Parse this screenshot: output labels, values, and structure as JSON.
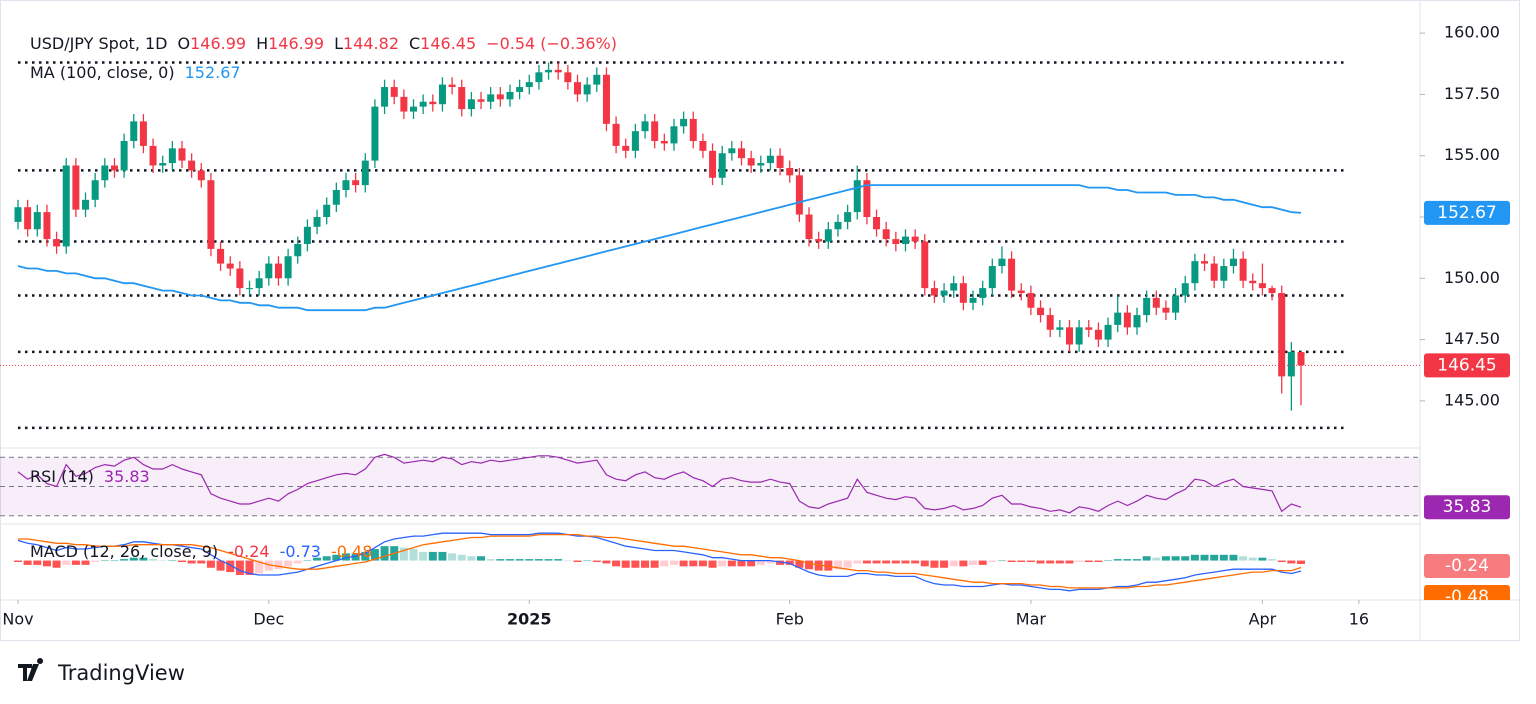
{
  "chart_data": {
    "type": "candlestick",
    "header": [
      [
        {
          "k": "USD/JPY Spot, 1D"
        },
        {
          "k": "O",
          "v": "146.99",
          "color": "#f23645"
        },
        {
          "k": "H",
          "v": "146.99",
          "color": "#f23645"
        },
        {
          "k": "L",
          "v": "144.82",
          "color": "#f23645"
        },
        {
          "k": "C",
          "v": "146.45",
          "color": "#f23645"
        },
        {
          "v": "−0.54 (−0.36%)",
          "color": "#f23645"
        }
      ],
      [
        {
          "k": "MA (100, close, 0)",
          "v": "152.67",
          "color": "#2196f3"
        }
      ]
    ],
    "rsi_header": [
      {
        "k": "RSI (14)",
        "v": "35.83",
        "color": "#9c27b0"
      }
    ],
    "macd_header": [
      {
        "k": "MACD (12, 26, close, 9)",
        "v": "-0.24",
        "color": "#f23645"
      },
      {
        "v": "-0.73",
        "color": "#2962ff"
      },
      {
        "v": "-0.48",
        "color": "#ff6d00"
      }
    ],
    "brand": "TradingView",
    "up_color": "#089981",
    "down_color": "#f23645",
    "ma_color": "#2196f3",
    "open": [
      152.3,
      152.9,
      152.0,
      152.7,
      151.6,
      151.3,
      154.6,
      152.8,
      153.2,
      154.0,
      154.6,
      154.4,
      155.6,
      156.4,
      155.4,
      154.6,
      154.7,
      155.3,
      154.8,
      154.4,
      154.0,
      151.2,
      150.6,
      150.4,
      149.6,
      149.6,
      150.0,
      150.6,
      150.0,
      150.9,
      151.4,
      152.1,
      152.5,
      153.0,
      153.6,
      154.0,
      153.8,
      154.8,
      157.0,
      157.8,
      157.4,
      156.8,
      157.0,
      157.2,
      157.1,
      157.9,
      157.8,
      156.9,
      157.3,
      157.2,
      157.5,
      157.3,
      157.6,
      157.8,
      158.0,
      158.4,
      158.5,
      158.4,
      158.0,
      157.5,
      157.9,
      158.3,
      156.3,
      155.4,
      155.2,
      156.0,
      156.4,
      155.6,
      155.5,
      156.2,
      156.5,
      155.6,
      155.2,
      154.1,
      155.1,
      155.3,
      154.9,
      154.6,
      154.7,
      155.0,
      154.5,
      154.2,
      152.6,
      151.6,
      151.5,
      152.0,
      152.3,
      152.7,
      154.0,
      152.5,
      152.0,
      151.6,
      151.4,
      151.7,
      151.5,
      149.6,
      149.3,
      149.5,
      149.8,
      149.0,
      149.2,
      149.6,
      150.5,
      150.8,
      149.5,
      149.4,
      148.8,
      148.5,
      147.9,
      148.0,
      147.3,
      148.0,
      147.9,
      147.5,
      148.1,
      148.6,
      148.0,
      148.5,
      149.2,
      148.8,
      148.6,
      149.3,
      149.8,
      150.7,
      150.6,
      149.9,
      150.5,
      150.8,
      149.9,
      149.8,
      149.6,
      149.4,
      146.0,
      146.99
    ],
    "high": [
      153.2,
      153.2,
      153.0,
      153.0,
      151.9,
      154.9,
      154.9,
      153.5,
      154.3,
      154.9,
      154.9,
      155.9,
      156.7,
      156.7,
      155.7,
      155.0,
      155.6,
      155.6,
      155.1,
      154.7,
      154.3,
      151.5,
      150.9,
      150.7,
      149.9,
      150.3,
      150.9,
      150.9,
      151.2,
      151.7,
      152.4,
      152.8,
      153.3,
      153.9,
      154.3,
      154.3,
      155.1,
      157.3,
      158.1,
      158.1,
      157.7,
      157.3,
      157.5,
      157.5,
      158.2,
      158.2,
      158.1,
      157.6,
      157.6,
      157.8,
      157.8,
      157.9,
      158.1,
      158.3,
      158.7,
      158.8,
      158.8,
      158.7,
      158.3,
      158.2,
      158.6,
      158.6,
      156.6,
      155.7,
      156.3,
      156.7,
      156.7,
      155.9,
      156.5,
      156.8,
      156.8,
      155.9,
      155.5,
      155.4,
      155.6,
      155.6,
      155.2,
      155.0,
      155.3,
      155.3,
      154.8,
      154.5,
      152.9,
      151.9,
      152.3,
      152.6,
      153.0,
      154.6,
      154.3,
      152.8,
      152.3,
      151.9,
      152.0,
      152.0,
      151.8,
      149.9,
      149.8,
      150.1,
      150.1,
      149.5,
      149.9,
      150.8,
      151.3,
      151.1,
      149.8,
      149.7,
      149.1,
      148.8,
      148.3,
      148.3,
      148.3,
      148.3,
      148.2,
      148.4,
      149.3,
      148.9,
      148.8,
      149.5,
      149.5,
      149.1,
      149.6,
      150.1,
      151.0,
      151.0,
      150.9,
      150.8,
      151.2,
      151.1,
      150.2,
      150.6,
      149.7,
      149.7,
      147.4,
      146.99
    ],
    "low": [
      152.0,
      151.7,
      151.7,
      151.3,
      151.0,
      151.0,
      152.5,
      152.5,
      152.9,
      153.7,
      154.1,
      154.1,
      155.3,
      155.1,
      154.3,
      154.3,
      154.4,
      154.5,
      154.1,
      153.7,
      150.9,
      150.3,
      150.1,
      149.3,
      149.3,
      149.3,
      149.7,
      149.7,
      149.7,
      150.6,
      151.1,
      151.8,
      152.2,
      152.7,
      153.3,
      153.5,
      153.5,
      154.5,
      156.7,
      157.1,
      156.5,
      156.5,
      156.7,
      156.8,
      156.8,
      157.5,
      156.6,
      156.6,
      156.9,
      156.9,
      157.0,
      157.0,
      157.3,
      157.5,
      157.7,
      158.1,
      158.1,
      157.7,
      157.2,
      157.2,
      157.6,
      156.0,
      155.1,
      154.9,
      154.9,
      155.7,
      155.3,
      155.2,
      155.2,
      155.9,
      155.3,
      154.9,
      153.8,
      153.8,
      154.8,
      154.6,
      154.3,
      154.3,
      154.4,
      154.2,
      153.9,
      152.3,
      151.3,
      151.2,
      151.2,
      151.7,
      152.0,
      152.4,
      152.2,
      151.7,
      151.3,
      151.1,
      151.1,
      151.2,
      149.3,
      149.0,
      149.0,
      149.2,
      148.7,
      148.7,
      148.9,
      149.3,
      150.2,
      149.2,
      149.1,
      148.5,
      148.2,
      147.6,
      147.6,
      147.0,
      147.0,
      147.6,
      147.2,
      147.2,
      147.8,
      147.7,
      147.7,
      148.2,
      148.5,
      148.3,
      148.3,
      149.0,
      149.5,
      150.3,
      149.6,
      149.6,
      150.2,
      149.6,
      149.5,
      149.3,
      149.1,
      145.3,
      144.6,
      144.82
    ],
    "close": [
      152.9,
      152.0,
      152.7,
      151.6,
      151.3,
      154.6,
      152.8,
      153.2,
      154.0,
      154.6,
      154.4,
      155.6,
      156.4,
      155.4,
      154.6,
      154.7,
      155.3,
      154.8,
      154.4,
      154.0,
      151.2,
      150.6,
      150.4,
      149.6,
      149.6,
      150.0,
      150.6,
      150.0,
      150.9,
      151.4,
      152.1,
      152.5,
      153.0,
      153.6,
      154.0,
      153.8,
      154.8,
      157.0,
      157.8,
      157.4,
      156.8,
      157.0,
      157.2,
      157.1,
      157.9,
      157.8,
      156.9,
      157.3,
      157.2,
      157.5,
      157.3,
      157.6,
      157.8,
      158.0,
      158.4,
      158.5,
      158.4,
      158.0,
      157.5,
      157.9,
      158.3,
      156.3,
      155.4,
      155.2,
      156.0,
      156.4,
      155.6,
      155.5,
      156.2,
      156.5,
      155.6,
      155.2,
      154.1,
      155.1,
      155.3,
      154.9,
      154.6,
      154.7,
      155.0,
      154.5,
      154.2,
      152.6,
      151.6,
      151.5,
      152.0,
      152.3,
      152.7,
      154.0,
      152.5,
      152.0,
      151.6,
      151.4,
      151.7,
      151.5,
      149.6,
      149.3,
      149.5,
      149.8,
      149.0,
      149.2,
      149.6,
      150.5,
      150.8,
      149.5,
      149.4,
      148.8,
      148.5,
      147.9,
      148.0,
      147.3,
      148.0,
      147.9,
      147.5,
      148.1,
      148.6,
      148.0,
      148.5,
      149.2,
      148.8,
      148.6,
      149.3,
      149.8,
      150.7,
      150.6,
      149.9,
      150.5,
      150.8,
      149.9,
      149.8,
      149.6,
      149.4,
      146.0,
      147.0,
      146.45
    ],
    "ma": [
      150.5,
      150.4,
      150.4,
      150.3,
      150.3,
      150.2,
      150.2,
      150.1,
      150.0,
      150.0,
      149.9,
      149.8,
      149.8,
      149.7,
      149.6,
      149.5,
      149.5,
      149.4,
      149.3,
      149.3,
      149.2,
      149.1,
      149.1,
      149.0,
      149.0,
      148.9,
      148.9,
      148.8,
      148.8,
      148.8,
      148.7,
      148.7,
      148.7,
      148.7,
      148.7,
      148.7,
      148.7,
      148.8,
      148.8,
      148.9,
      149.0,
      149.1,
      149.2,
      149.3,
      149.4,
      149.5,
      149.6,
      149.7,
      149.8,
      149.9,
      150.0,
      150.1,
      150.2,
      150.3,
      150.4,
      150.5,
      150.6,
      150.7,
      150.8,
      150.9,
      151.0,
      151.1,
      151.2,
      151.3,
      151.4,
      151.5,
      151.6,
      151.7,
      151.8,
      151.9,
      152.0,
      152.1,
      152.2,
      152.3,
      152.4,
      152.5,
      152.6,
      152.7,
      152.8,
      152.9,
      153.0,
      153.1,
      153.2,
      153.3,
      153.4,
      153.5,
      153.6,
      153.7,
      153.8,
      153.8,
      153.8,
      153.8,
      153.8,
      153.8,
      153.8,
      153.8,
      153.8,
      153.8,
      153.8,
      153.8,
      153.8,
      153.8,
      153.8,
      153.8,
      153.8,
      153.8,
      153.8,
      153.8,
      153.8,
      153.8,
      153.8,
      153.7,
      153.7,
      153.7,
      153.6,
      153.6,
      153.5,
      153.5,
      153.5,
      153.5,
      153.4,
      153.4,
      153.4,
      153.3,
      153.3,
      153.2,
      153.2,
      153.1,
      153.0,
      152.9,
      152.9,
      152.8,
      152.7,
      152.67
    ],
    "levels": [
      158.8,
      154.4,
      151.5,
      149.3,
      147.0,
      143.9
    ],
    "ylim": [
      143.12,
      161.35
    ],
    "yticks": [
      {
        "value": 145,
        "label": "145.00"
      },
      {
        "value": 147.5,
        "label": "147.50"
      },
      {
        "value": 150,
        "label": "150.00"
      },
      {
        "value": 152.5,
        "label": "152.50"
      },
      {
        "value": 155,
        "label": "155.00"
      },
      {
        "value": 157.5,
        "label": "157.50"
      },
      {
        "value": 160,
        "label": "160.00"
      }
    ],
    "xlim": [
      0,
      133
    ],
    "xticks": [
      {
        "value": 0,
        "label": "Nov"
      },
      {
        "value": 26,
        "label": "Dec"
      },
      {
        "value": 53,
        "label": "2025"
      },
      {
        "value": 80,
        "label": "Feb"
      },
      {
        "value": 105,
        "label": "Mar"
      },
      {
        "value": 129,
        "label": "Apr"
      },
      {
        "value": 139,
        "label": "16"
      }
    ],
    "rsi_color": "#9c27b0",
    "rsi_ylim": [
      25,
      75
    ],
    "rsi_levels": [
      70,
      50,
      30
    ],
    "rsi": [
      60,
      55,
      58,
      52,
      50,
      65,
      57,
      59,
      63,
      65,
      64,
      68,
      70,
      65,
      62,
      62,
      65,
      62,
      60,
      58,
      45,
      42,
      40,
      38,
      38,
      40,
      42,
      40,
      45,
      48,
      52,
      54,
      56,
      58,
      59,
      58,
      62,
      70,
      72,
      70,
      66,
      67,
      68,
      67,
      70,
      69,
      65,
      67,
      66,
      68,
      67,
      68,
      69,
      70,
      71,
      71,
      70,
      68,
      66,
      67,
      68,
      58,
      55,
      54,
      58,
      60,
      56,
      55,
      58,
      60,
      56,
      54,
      50,
      55,
      56,
      54,
      53,
      53,
      55,
      53,
      52,
      40,
      36,
      35,
      38,
      40,
      42,
      55,
      46,
      44,
      42,
      41,
      43,
      42,
      35,
      34,
      35,
      37,
      34,
      35,
      37,
      42,
      44,
      38,
      38,
      36,
      35,
      33,
      34,
      32,
      36,
      35,
      33,
      37,
      40,
      37,
      40,
      44,
      42,
      41,
      45,
      48,
      55,
      54,
      50,
      53,
      55,
      50,
      49,
      48,
      47,
      33,
      38,
      35.83
    ],
    "macd_ylim": [
      -2.6,
      2.4
    ],
    "macd_color": "#2962ff",
    "signal_color": "#ff6d00",
    "macd": [
      1.4,
      1.2,
      1.1,
      0.9,
      0.7,
      0.9,
      0.8,
      0.8,
      0.9,
      1.0,
      1.0,
      1.1,
      1.3,
      1.3,
      1.2,
      1.1,
      1.1,
      1.0,
      0.9,
      0.8,
      0.4,
      0.0,
      -0.3,
      -0.7,
      -0.9,
      -1.0,
      -1.0,
      -1.0,
      -0.9,
      -0.8,
      -0.6,
      -0.4,
      -0.2,
      0.0,
      0.2,
      0.3,
      0.5,
      0.9,
      1.3,
      1.5,
      1.6,
      1.7,
      1.7,
      1.8,
      1.9,
      1.9,
      1.9,
      1.9,
      1.9,
      1.8,
      1.8,
      1.8,
      1.8,
      1.8,
      1.9,
      1.9,
      1.9,
      1.8,
      1.7,
      1.7,
      1.6,
      1.4,
      1.2,
      1.0,
      0.9,
      0.8,
      0.7,
      0.7,
      0.7,
      0.6,
      0.5,
      0.4,
      0.2,
      0.2,
      0.1,
      0.0,
      0.0,
      0.0,
      0.0,
      -0.1,
      -0.2,
      -0.5,
      -0.8,
      -1.0,
      -1.1,
      -1.1,
      -1.1,
      -0.9,
      -0.9,
      -1.0,
      -1.0,
      -1.1,
      -1.1,
      -1.1,
      -1.4,
      -1.6,
      -1.7,
      -1.7,
      -1.8,
      -1.8,
      -1.8,
      -1.7,
      -1.6,
      -1.7,
      -1.7,
      -1.8,
      -1.9,
      -2.0,
      -2.0,
      -2.1,
      -2.0,
      -2.0,
      -2.0,
      -1.9,
      -1.8,
      -1.8,
      -1.7,
      -1.5,
      -1.5,
      -1.4,
      -1.3,
      -1.2,
      -1.0,
      -0.9,
      -0.8,
      -0.7,
      -0.6,
      -0.6,
      -0.6,
      -0.6,
      -0.6,
      -0.8,
      -0.9,
      -0.73
    ],
    "signal": [
      1.5,
      1.5,
      1.4,
      1.3,
      1.2,
      1.2,
      1.1,
      1.1,
      1.0,
      1.0,
      1.0,
      1.0,
      1.1,
      1.1,
      1.1,
      1.1,
      1.1,
      1.1,
      1.1,
      1.0,
      0.9,
      0.7,
      0.5,
      0.3,
      0.1,
      -0.1,
      -0.3,
      -0.4,
      -0.5,
      -0.6,
      -0.6,
      -0.6,
      -0.5,
      -0.4,
      -0.3,
      -0.2,
      -0.1,
      0.1,
      0.3,
      0.5,
      0.7,
      0.9,
      1.1,
      1.2,
      1.3,
      1.4,
      1.5,
      1.6,
      1.6,
      1.7,
      1.7,
      1.7,
      1.7,
      1.7,
      1.8,
      1.8,
      1.8,
      1.8,
      1.8,
      1.7,
      1.7,
      1.6,
      1.6,
      1.5,
      1.4,
      1.3,
      1.2,
      1.1,
      1.0,
      1.0,
      0.9,
      0.8,
      0.7,
      0.6,
      0.5,
      0.4,
      0.4,
      0.3,
      0.2,
      0.2,
      0.1,
      0.0,
      -0.2,
      -0.3,
      -0.4,
      -0.5,
      -0.6,
      -0.7,
      -0.7,
      -0.8,
      -0.8,
      -0.9,
      -0.9,
      -0.9,
      -1.0,
      -1.1,
      -1.2,
      -1.3,
      -1.4,
      -1.5,
      -1.5,
      -1.6,
      -1.6,
      -1.6,
      -1.6,
      -1.7,
      -1.7,
      -1.8,
      -1.8,
      -1.9,
      -1.9,
      -1.9,
      -1.9,
      -1.9,
      -1.9,
      -1.9,
      -1.8,
      -1.8,
      -1.7,
      -1.7,
      -1.6,
      -1.5,
      -1.4,
      -1.3,
      -1.2,
      -1.1,
      -1.0,
      -0.9,
      -0.8,
      -0.8,
      -0.7,
      -0.7,
      -0.7,
      -0.48
    ],
    "histogram": [
      -0.1,
      -0.3,
      -0.3,
      -0.4,
      -0.5,
      -0.3,
      -0.3,
      -0.3,
      -0.1,
      0.0,
      0.0,
      0.1,
      0.2,
      0.2,
      0.1,
      0.0,
      0.0,
      -0.1,
      -0.2,
      -0.2,
      -0.5,
      -0.7,
      -0.8,
      -1.0,
      -1.0,
      -0.9,
      -0.7,
      -0.6,
      -0.4,
      -0.2,
      0.0,
      0.2,
      0.3,
      0.4,
      0.5,
      0.5,
      0.6,
      0.8,
      1.0,
      1.0,
      0.9,
      0.8,
      0.6,
      0.6,
      0.6,
      0.5,
      0.4,
      0.3,
      0.3,
      0.1,
      0.1,
      0.1,
      0.1,
      0.1,
      0.1,
      0.1,
      0.1,
      0.0,
      -0.1,
      0.0,
      -0.1,
      -0.2,
      -0.4,
      -0.5,
      -0.5,
      -0.5,
      -0.5,
      -0.4,
      -0.3,
      -0.4,
      -0.4,
      -0.4,
      -0.5,
      -0.4,
      -0.4,
      -0.4,
      -0.4,
      -0.3,
      -0.2,
      -0.3,
      -0.3,
      -0.5,
      -0.6,
      -0.7,
      -0.7,
      -0.6,
      -0.5,
      -0.2,
      -0.2,
      -0.2,
      -0.2,
      -0.2,
      -0.2,
      -0.2,
      -0.4,
      -0.5,
      -0.5,
      -0.4,
      -0.4,
      -0.3,
      -0.3,
      -0.1,
      0.0,
      -0.1,
      -0.1,
      -0.1,
      -0.2,
      -0.2,
      -0.2,
      -0.2,
      -0.1,
      -0.1,
      -0.1,
      0.0,
      0.1,
      0.1,
      0.1,
      0.3,
      0.2,
      0.3,
      0.3,
      0.3,
      0.4,
      0.4,
      0.4,
      0.4,
      0.4,
      0.3,
      0.2,
      0.2,
      0.1,
      -0.1,
      -0.2,
      -0.24
    ]
  }
}
